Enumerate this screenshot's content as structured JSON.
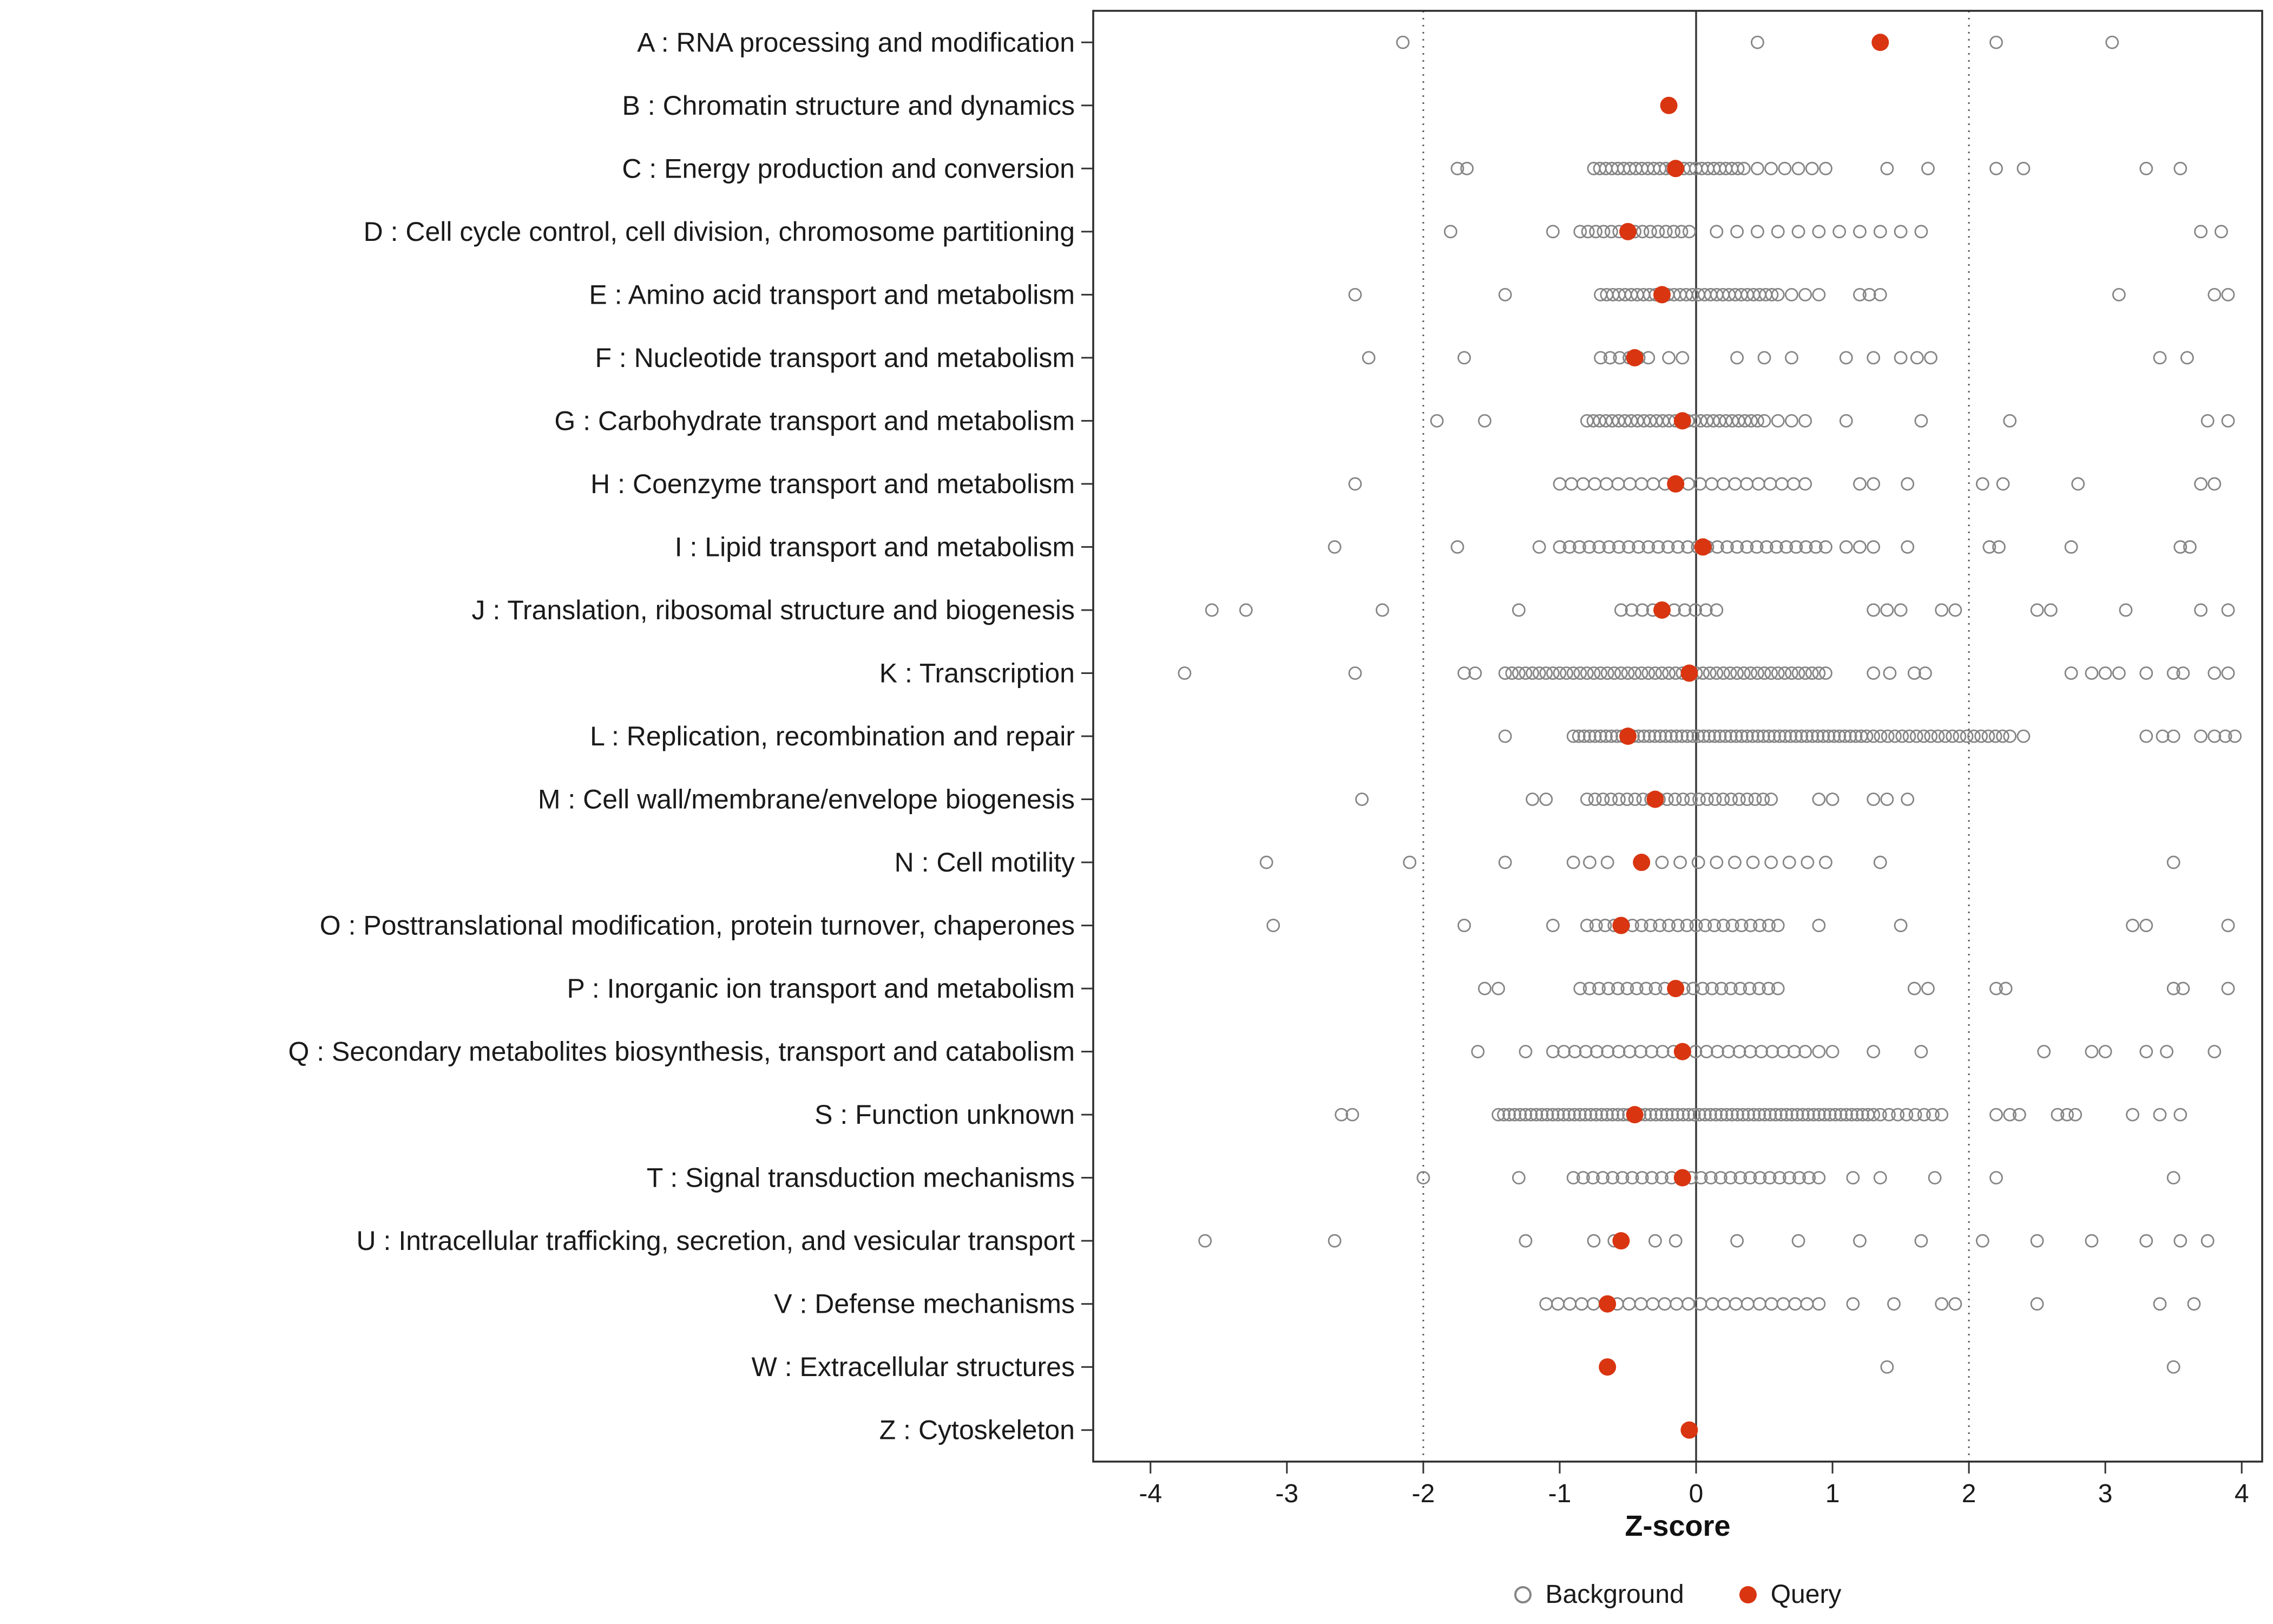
{
  "chart_data": {
    "type": "scatter",
    "title": "",
    "xlabel": "Z-score",
    "ylabel": "",
    "xlim": [
      -4.42,
      4.15
    ],
    "x_ticks": [
      -4,
      -3,
      -2,
      -1,
      0,
      1,
      2,
      3,
      4
    ],
    "reference_lines": {
      "solid": [
        0
      ],
      "dotted": [
        -2,
        2
      ]
    },
    "grid": false,
    "legend_position": "bottom",
    "colors": {
      "background_point": "#858585",
      "query_point": "#d93511",
      "panel_border": "#2b2b2b",
      "axis_text": "#1a1a1a",
      "zero_line": "#3a3a3a",
      "dotted_line": "#5a5a5a"
    },
    "legend": [
      {
        "label": "Background",
        "marker": "open-circle",
        "color": "#858585"
      },
      {
        "label": "Query",
        "marker": "filled-circle",
        "color": "#d93511"
      }
    ],
    "categories": [
      {
        "label": "A : RNA processing and modification",
        "query": 1.35,
        "points": [
          -2.15,
          0.45,
          2.2,
          3.05
        ],
        "bands": []
      },
      {
        "label": "B : Chromatin structure and dynamics",
        "query": -0.2,
        "points": [],
        "bands": []
      },
      {
        "label": "C : Energy production and conversion",
        "query": -0.15,
        "points": [
          -1.75,
          -1.68,
          0.45,
          0.55,
          0.65,
          0.75,
          0.85,
          0.95,
          1.4,
          1.7,
          2.2,
          2.4,
          3.3,
          3.55
        ],
        "bands": [
          [
            -0.75,
            0.35,
            26
          ]
        ]
      },
      {
        "label": "D : Cell cycle control, cell division, chromosome partitioning",
        "query": -0.5,
        "points": [
          -1.8,
          -1.05,
          0.15,
          0.3,
          0.45,
          0.6,
          0.75,
          0.9,
          1.05,
          1.2,
          1.35,
          1.5,
          1.65,
          3.7,
          3.85
        ],
        "bands": [
          [
            -0.85,
            -0.05,
            15
          ]
        ]
      },
      {
        "label": "E : Amino acid transport and metabolism",
        "query": -0.25,
        "points": [
          -2.5,
          -1.4,
          0.7,
          0.8,
          0.9,
          1.2,
          1.27,
          1.35,
          3.1,
          3.8,
          3.9
        ],
        "bands": [
          [
            -0.7,
            0.6,
            30
          ]
        ]
      },
      {
        "label": "F : Nucleotide transport and metabolism",
        "query": -0.45,
        "points": [
          -2.4,
          -1.7,
          -0.2,
          -0.1,
          0.3,
          0.5,
          0.7,
          1.1,
          1.3,
          1.5,
          1.62,
          1.72,
          3.4,
          3.6
        ],
        "bands": [
          [
            -0.7,
            -0.35,
            6
          ]
        ]
      },
      {
        "label": "G : Carbohydrate transport and metabolism",
        "query": -0.1,
        "points": [
          -1.9,
          -1.55,
          0.5,
          0.6,
          0.7,
          0.8,
          1.1,
          1.65,
          2.3,
          3.75,
          3.9
        ],
        "bands": [
          [
            -0.8,
            0.45,
            28
          ]
        ]
      },
      {
        "label": "H : Coenzyme transport and metabolism",
        "query": -0.15,
        "points": [
          -2.5,
          1.2,
          1.3,
          1.55,
          2.1,
          2.25,
          2.8,
          3.7,
          3.8
        ],
        "bands": [
          [
            -1.0,
            0.8,
            22
          ]
        ]
      },
      {
        "label": "I : Lipid transport and metabolism",
        "query": 0.05,
        "points": [
          -2.65,
          -1.75,
          -1.15,
          1.1,
          1.2,
          1.3,
          1.55,
          2.15,
          2.22,
          2.75,
          3.55,
          3.62
        ],
        "bands": [
          [
            -1.0,
            0.95,
            28
          ]
        ]
      },
      {
        "label": "J : Translation, ribosomal structure and biogenesis",
        "query": -0.25,
        "points": [
          -3.55,
          -3.3,
          -2.3,
          -1.3,
          1.3,
          1.4,
          1.5,
          1.8,
          1.9,
          2.5,
          2.6,
          3.15,
          3.7,
          3.9
        ],
        "bands": [
          [
            -0.55,
            0.15,
            10
          ]
        ]
      },
      {
        "label": "K : Transcription",
        "query": -0.05,
        "points": [
          -3.75,
          -2.5,
          -1.7,
          -1.62,
          1.3,
          1.42,
          1.6,
          1.68,
          2.75,
          2.9,
          3.0,
          3.1,
          3.3,
          3.5,
          3.57,
          3.8,
          3.9
        ],
        "bands": [
          [
            -1.4,
            0.95,
            48
          ]
        ]
      },
      {
        "label": "L : Replication, recombination and repair",
        "query": -0.5,
        "points": [
          -1.4,
          2.4,
          3.3,
          3.42,
          3.5,
          3.7,
          3.8,
          3.88,
          3.95
        ],
        "bands": [
          [
            -0.9,
            1.25,
            55
          ],
          [
            1.3,
            2.3,
            20
          ]
        ]
      },
      {
        "label": "M : Cell wall/membrane/envelope biogenesis",
        "query": -0.3,
        "points": [
          -2.45,
          -1.2,
          -1.1,
          0.9,
          1.0,
          1.3,
          1.4,
          1.55
        ],
        "bands": [
          [
            -0.8,
            0.55,
            24
          ]
        ]
      },
      {
        "label": "N : Cell motility",
        "query": -0.4,
        "points": [
          -3.15,
          -2.1,
          -1.4,
          -0.9,
          -0.78,
          -0.65,
          1.35,
          3.5
        ],
        "bands": [
          [
            -0.25,
            0.95,
            10
          ]
        ]
      },
      {
        "label": "O : Posttranslational modification, protein turnover, chaperones",
        "query": -0.55,
        "points": [
          -3.1,
          -1.7,
          -1.05,
          0.9,
          1.5,
          3.2,
          3.3,
          3.9
        ],
        "bands": [
          [
            -0.8,
            0.6,
            22
          ]
        ]
      },
      {
        "label": "P : Inorganic ion transport and metabolism",
        "query": -0.15,
        "points": [
          -1.55,
          -1.45,
          1.6,
          1.7,
          2.2,
          2.27,
          3.5,
          3.57,
          3.9
        ],
        "bands": [
          [
            -0.85,
            0.6,
            22
          ]
        ]
      },
      {
        "label": "Q : Secondary metabolites biosynthesis, transport and catabolism",
        "query": -0.1,
        "points": [
          -1.6,
          -1.25,
          0.9,
          1.0,
          1.3,
          1.65,
          2.55,
          2.9,
          3.0,
          3.3,
          3.45,
          3.8
        ],
        "bands": [
          [
            -1.05,
            0.8,
            24
          ]
        ]
      },
      {
        "label": "S : Function unknown",
        "query": -0.45,
        "points": [
          -2.6,
          -2.52,
          2.2,
          2.3,
          2.37,
          2.65,
          2.72,
          2.78,
          3.2,
          3.4,
          3.55
        ],
        "bands": [
          [
            -1.45,
            1.3,
            70
          ],
          [
            1.35,
            1.8,
            8
          ]
        ]
      },
      {
        "label": "T : Signal transduction mechanisms",
        "query": -0.1,
        "points": [
          -2.0,
          -1.3,
          1.15,
          1.35,
          1.75,
          2.2,
          3.5
        ],
        "bands": [
          [
            -0.9,
            0.9,
            26
          ]
        ]
      },
      {
        "label": "U : Intracellular trafficking, secretion, and vesicular transport",
        "query": -0.55,
        "points": [
          -3.6,
          -2.65,
          -1.25,
          -0.75,
          -0.6,
          -0.3,
          -0.15,
          0.3,
          0.75,
          1.2,
          1.65,
          2.1,
          2.5,
          2.9,
          3.3,
          3.55,
          3.75
        ],
        "bands": []
      },
      {
        "label": "V : Defense mechanisms",
        "query": -0.65,
        "points": [
          1.15,
          1.45,
          1.8,
          1.9,
          2.5,
          3.4,
          3.65
        ],
        "bands": [
          [
            -1.1,
            0.9,
            24
          ]
        ]
      },
      {
        "label": "W : Extracellular structures",
        "query": -0.65,
        "points": [
          1.4,
          3.5
        ],
        "bands": []
      },
      {
        "label": "Z : Cytoskeleton",
        "query": -0.05,
        "points": [],
        "bands": []
      }
    ]
  }
}
